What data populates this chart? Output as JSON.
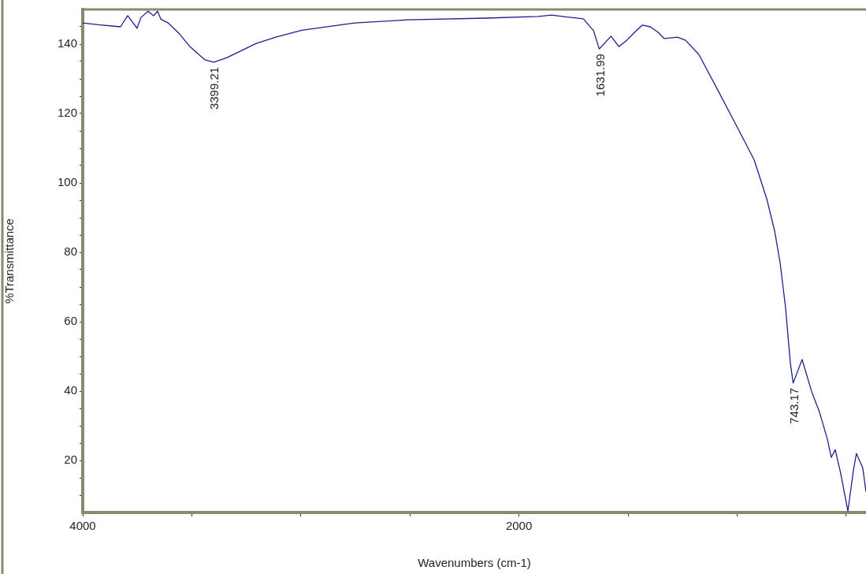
{
  "chart_data": {
    "type": "line",
    "xlabel": "Wavenumbers (cm-1)",
    "ylabel": "%Transmittance",
    "color": "#1f1f8f",
    "marker": "none",
    "line_style": "solid",
    "legend": false,
    "x": [
      4000,
      3928,
      3827,
      3794,
      3751,
      3733,
      3700,
      3675,
      3657,
      3642,
      3608,
      3557,
      3509,
      3440,
      3399,
      3339,
      3205,
      3115,
      2996,
      2754,
      2512,
      2150,
      1912,
      1850,
      1778,
      1705,
      1658,
      1632,
      1578,
      1542,
      1506,
      1470,
      1434,
      1398,
      1362,
      1334,
      1273,
      1236,
      1175,
      1092,
      1009,
      922,
      864,
      828,
      803,
      778,
      756,
      743,
      702,
      658,
      622,
      586,
      568,
      550,
      525,
      492,
      467,
      453,
      424,
      409
    ],
    "values": [
      146.1,
      145.6,
      145,
      148.2,
      144.6,
      147.7,
      149.5,
      148.2,
      149.5,
      147.2,
      146.1,
      143,
      139.3,
      135.5,
      134.8,
      136.1,
      140.2,
      142,
      144,
      146.1,
      147,
      147.5,
      148,
      148.4,
      147.8,
      147.3,
      143.9,
      138.6,
      142.3,
      139.3,
      141.1,
      143.4,
      145.5,
      145,
      143.4,
      141.6,
      142,
      141.1,
      137,
      127.2,
      117.2,
      106.7,
      95.4,
      86.2,
      77.1,
      64.2,
      48.2,
      42.3,
      49.1,
      39.8,
      33.9,
      26.1,
      20.9,
      23.1,
      16.3,
      5.4,
      17,
      22,
      17.9,
      11
    ],
    "xlim": [
      4000,
      409
    ],
    "xticks": [
      4000,
      {
        "value": 3500,
        "label": null
      },
      {
        "value": 3000,
        "label": null
      },
      {
        "value": 2500,
        "label": null
      },
      2000,
      {
        "value": 1500,
        "label": null
      },
      {
        "value": 1000,
        "label": null
      },
      {
        "value": 500,
        "label": null
      }
    ],
    "ylim": [
      5,
      150
    ],
    "yticks": [
      {
        "value": 10,
        "label": null
      },
      {
        "value": 15,
        "label": null
      },
      20,
      {
        "value": 25,
        "label": null
      },
      {
        "value": 30,
        "label": null
      },
      {
        "value": 35,
        "label": null
      },
      40,
      {
        "value": 45,
        "label": null
      },
      {
        "value": 50,
        "label": null
      },
      {
        "value": 55,
        "label": null
      },
      60,
      {
        "value": 65,
        "label": null
      },
      {
        "value": 70,
        "label": null
      },
      {
        "value": 75,
        "label": null
      },
      80,
      {
        "value": 85,
        "label": null
      },
      {
        "value": 90,
        "label": null
      },
      {
        "value": 95,
        "label": null
      },
      100,
      {
        "value": 105,
        "label": null
      },
      {
        "value": 110,
        "label": null
      },
      {
        "value": 115,
        "label": null
      },
      120,
      {
        "value": 125,
        "label": null
      },
      {
        "value": 130,
        "label": null
      },
      {
        "value": 135,
        "label": null
      },
      140,
      {
        "value": 145,
        "label": null
      }
    ],
    "annotations": [
      {
        "text": "3399.21",
        "x": 3399.21,
        "y": 134.8
      },
      {
        "text": "1631.99",
        "x": 1631.99,
        "y": 138.6
      },
      {
        "text": "743.17",
        "x": 743.17,
        "y": 42.3
      }
    ]
  }
}
